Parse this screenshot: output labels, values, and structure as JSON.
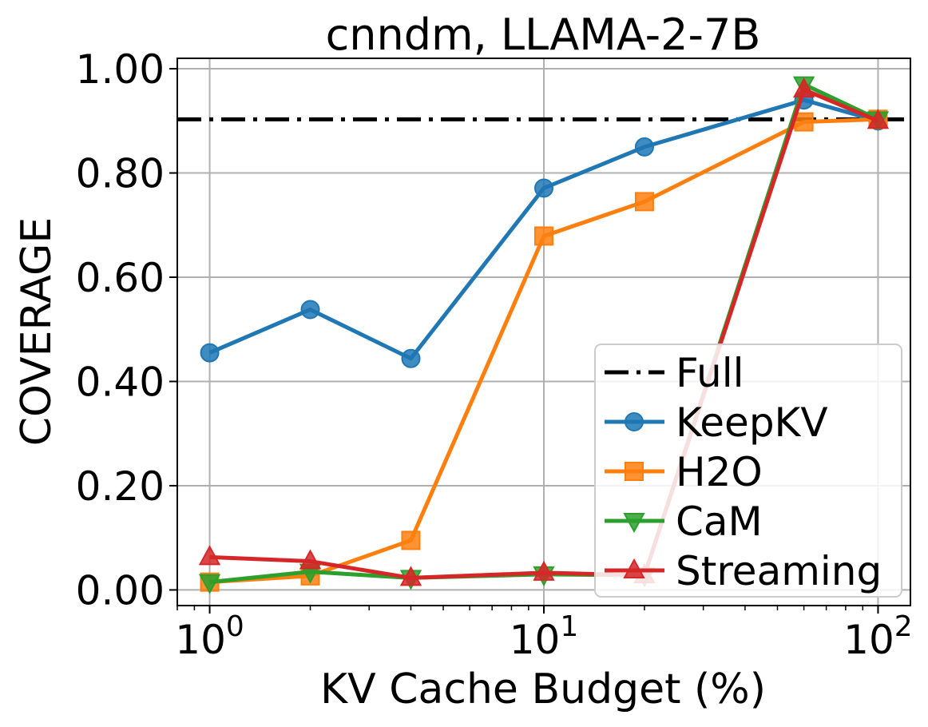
{
  "chart_data": {
    "type": "line",
    "title": "cnndm, LLAMA-2-7B",
    "xlabel": "KV Cache Budget (%)",
    "ylabel": "COVERAGE",
    "xscale": "log",
    "xlim": [
      0.8,
      125
    ],
    "ylim": [
      -0.03,
      1.02
    ],
    "grid": true,
    "x_ticks": [
      {
        "value": 1,
        "base": "10",
        "exp": "0"
      },
      {
        "value": 10,
        "base": "10",
        "exp": "1"
      },
      {
        "value": 100,
        "base": "10",
        "exp": "2"
      }
    ],
    "y_ticks": [
      {
        "value": 0.0,
        "label": "0.00"
      },
      {
        "value": 0.2,
        "label": "0.20"
      },
      {
        "value": 0.4,
        "label": "0.40"
      },
      {
        "value": 0.6,
        "label": "0.60"
      },
      {
        "value": 0.8,
        "label": "0.80"
      },
      {
        "value": 1.0,
        "label": "1.00"
      }
    ],
    "reference": {
      "name": "Full",
      "value": 0.903,
      "color": "#000000",
      "style": "dashdot"
    },
    "legend_position": "lower-right",
    "series": [
      {
        "name": "KeepKV",
        "color": "#1f77b4",
        "marker": "circle",
        "x": [
          1,
          2,
          4,
          10,
          20,
          60,
          100
        ],
        "y": [
          0.455,
          0.538,
          0.444,
          0.771,
          0.85,
          0.94,
          0.9
        ]
      },
      {
        "name": "H2O",
        "color": "#ff7f0e",
        "marker": "square",
        "x": [
          1,
          2,
          4,
          10,
          20,
          60,
          100
        ],
        "y": [
          0.015,
          0.027,
          0.095,
          0.679,
          0.745,
          0.898,
          0.903
        ]
      },
      {
        "name": "CaM",
        "color": "#2ca02c",
        "marker": "triangle-down",
        "x": [
          1,
          2,
          4,
          10,
          20,
          60,
          100
        ],
        "y": [
          0.015,
          0.035,
          0.023,
          0.03,
          0.028,
          0.97,
          0.903
        ]
      },
      {
        "name": "Streaming",
        "color": "#d62728",
        "marker": "triangle-up",
        "x": [
          1,
          2,
          4,
          10,
          20,
          60,
          100
        ],
        "y": [
          0.063,
          0.055,
          0.023,
          0.033,
          0.028,
          0.96,
          0.9
        ]
      }
    ]
  }
}
